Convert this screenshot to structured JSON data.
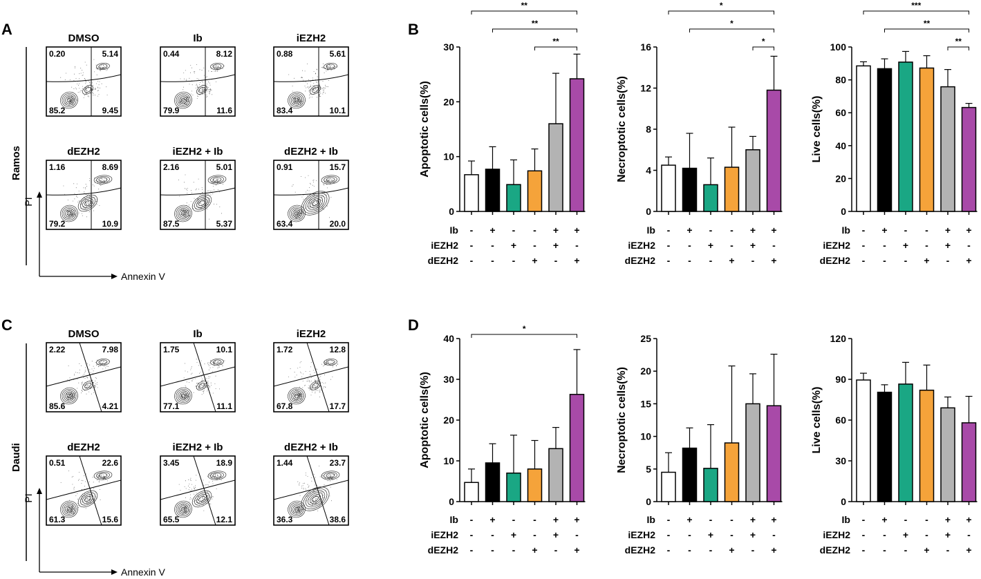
{
  "panel_labels": [
    "A",
    "B",
    "C",
    "D"
  ],
  "colors": {
    "control": "#ffffff",
    "ib": "#000000",
    "iezh2": "#1aa784",
    "dezh2": "#f5a33a",
    "iezh2_ib": "#b3b3b3",
    "dezh2_ib": "#a84aa8"
  },
  "flow": {
    "x_axis_label": "Annexin V",
    "y_axis_label": "PI",
    "blocks": [
      {
        "cell_line": "Ramos",
        "plots": [
          {
            "title": "DMSO",
            "quadrants": [
              "0.20",
              "5.14",
              "85.2",
              "9.45"
            ]
          },
          {
            "title": "Ib",
            "quadrants": [
              "0.44",
              "8.12",
              "79.9",
              "11.6"
            ]
          },
          {
            "title": "iEZH2",
            "quadrants": [
              "0.88",
              "5.61",
              "83.4",
              "10.1"
            ]
          },
          {
            "title": "dEZH2",
            "quadrants": [
              "1.16",
              "8.69",
              "79.2",
              "10.9"
            ]
          },
          {
            "title": "iEZH2 + Ib",
            "quadrants": [
              "2.16",
              "5.01",
              "87.5",
              "5.37"
            ]
          },
          {
            "title": "dEZH2 + Ib",
            "quadrants": [
              "0.91",
              "15.7",
              "63.4",
              "20.0"
            ]
          }
        ]
      },
      {
        "cell_line": "Daudi",
        "plots": [
          {
            "title": "DMSO",
            "quadrants": [
              "2.22",
              "7.98",
              "85.6",
              "4.21"
            ]
          },
          {
            "title": "Ib",
            "quadrants": [
              "1.75",
              "10.1",
              "77.1",
              "11.1"
            ]
          },
          {
            "title": "iEZH2",
            "quadrants": [
              "1.72",
              "12.8",
              "67.8",
              "17.7"
            ]
          },
          {
            "title": "dEZH2",
            "quadrants": [
              "0.51",
              "22.6",
              "61.3",
              "15.6"
            ]
          },
          {
            "title": "iEZH2 + Ib",
            "quadrants": [
              "3.45",
              "18.9",
              "65.5",
              "12.1"
            ]
          },
          {
            "title": "dEZH2 + Ib",
            "quadrants": [
              "1.44",
              "23.7",
              "36.3",
              "38.6"
            ]
          }
        ]
      }
    ]
  },
  "treatment_rows": [
    {
      "label": "Ib",
      "signs": [
        "-",
        "+",
        "-",
        "-",
        "+",
        "+"
      ]
    },
    {
      "label": "iEZH2",
      "signs": [
        "-",
        "-",
        "+",
        "-",
        "+",
        "-"
      ]
    },
    {
      "label": "dEZH2",
      "signs": [
        "-",
        "-",
        "-",
        "+",
        "-",
        "+"
      ]
    }
  ],
  "chart_data": [
    {
      "type": "bar",
      "title": "",
      "ylabel": "Apoptotic cells(%)",
      "ylim": [
        0,
        30
      ],
      "yticks": [
        0,
        10,
        20,
        30
      ],
      "values": [
        6.7,
        7.7,
        4.9,
        7.4,
        16.0,
        24.2
      ],
      "errors": [
        2.5,
        4.1,
        4.5,
        4.0,
        9.2,
        4.5
      ],
      "significance": [
        {
          "from": 0,
          "to": 5,
          "label": "**"
        },
        {
          "from": 1,
          "to": 5,
          "label": "**"
        },
        {
          "from": 3,
          "to": 5,
          "label": "**"
        }
      ]
    },
    {
      "type": "bar",
      "title": "",
      "ylabel": "Necroptotic cells(%)",
      "ylim": [
        0,
        16
      ],
      "yticks": [
        0,
        4,
        8,
        12,
        16
      ],
      "values": [
        4.5,
        4.2,
        2.6,
        4.3,
        6.0,
        11.8
      ],
      "errors": [
        0.8,
        3.4,
        2.6,
        3.9,
        1.3,
        3.3
      ],
      "significance": [
        {
          "from": 0,
          "to": 5,
          "label": "*"
        },
        {
          "from": 1,
          "to": 5,
          "label": "*"
        },
        {
          "from": 4,
          "to": 5,
          "label": "*"
        }
      ]
    },
    {
      "type": "bar",
      "title": "",
      "ylabel": "Live cells(%)",
      "ylim": [
        0,
        100
      ],
      "yticks": [
        0,
        20,
        40,
        60,
        80,
        100
      ],
      "values": [
        88.5,
        86.8,
        90.8,
        87.2,
        75.8,
        63.2
      ],
      "errors": [
        2.5,
        6.0,
        6.5,
        7.5,
        10.5,
        2.5
      ],
      "significance": [
        {
          "from": 0,
          "to": 5,
          "label": "***"
        },
        {
          "from": 1,
          "to": 5,
          "label": "**"
        },
        {
          "from": 4,
          "to": 5,
          "label": "**"
        }
      ]
    },
    {
      "type": "bar",
      "title": "",
      "ylabel": "Apoptotic cells(%)",
      "ylim": [
        0,
        40
      ],
      "yticks": [
        0,
        10,
        20,
        30,
        40
      ],
      "values": [
        4.7,
        9.5,
        7.0,
        8.0,
        13.0,
        26.3
      ],
      "errors": [
        3.3,
        4.7,
        9.3,
        7.0,
        5.2,
        11.0
      ],
      "significance": [
        {
          "from": 0,
          "to": 5,
          "label": "*"
        }
      ]
    },
    {
      "type": "bar",
      "title": "",
      "ylabel": "Necroptotic cells(%)",
      "ylim": [
        0,
        25
      ],
      "yticks": [
        0,
        5,
        10,
        15,
        20,
        25
      ],
      "values": [
        4.5,
        8.2,
        5.1,
        9.0,
        15.0,
        14.7
      ],
      "errors": [
        3.0,
        3.1,
        6.7,
        11.8,
        4.6,
        7.9
      ],
      "significance": []
    },
    {
      "type": "bar",
      "title": "",
      "ylabel": "Live cells(%)",
      "ylim": [
        0,
        120
      ],
      "yticks": [
        0,
        30,
        60,
        90,
        120
      ],
      "values": [
        89.5,
        80.5,
        86.5,
        82.0,
        69.0,
        58.0
      ],
      "errors": [
        5.0,
        5.5,
        16.0,
        18.5,
        8.0,
        19.5
      ],
      "significance": []
    }
  ]
}
